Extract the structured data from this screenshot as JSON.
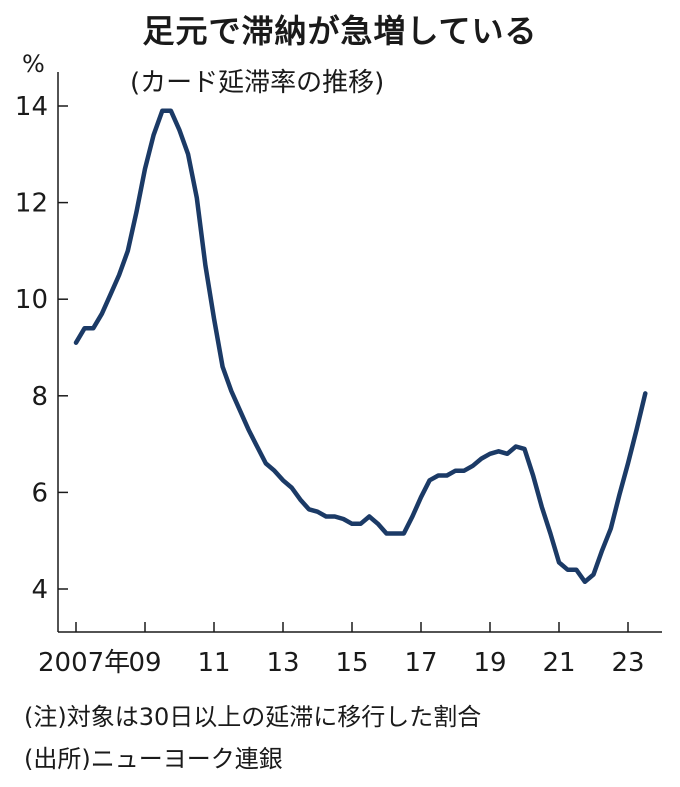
{
  "chart_data": {
    "type": "line",
    "title": "足元で滞納が急増している",
    "subtitle": "(カード延滞率の推移)",
    "ylabel": "%",
    "xlabel": "",
    "ylim": [
      3.2,
      15
    ],
    "xlim": [
      2006.8,
      2024.1
    ],
    "y_ticks": [
      4,
      6,
      8,
      10,
      12,
      14
    ],
    "x_ticks": [
      {
        "value": 2007,
        "label": "2007年"
      },
      {
        "value": 2009,
        "label": "09"
      },
      {
        "value": 2011,
        "label": "11"
      },
      {
        "value": 2013,
        "label": "13"
      },
      {
        "value": 2015,
        "label": "15"
      },
      {
        "value": 2017,
        "label": "17"
      },
      {
        "value": 2019,
        "label": "19"
      },
      {
        "value": 2021,
        "label": "21"
      },
      {
        "value": 2023,
        "label": "23"
      }
    ],
    "line_color": "#1b3a66",
    "series": [
      {
        "name": "",
        "x": [
          2007.0,
          2007.25,
          2007.5,
          2007.75,
          2008.0,
          2008.25,
          2008.5,
          2008.75,
          2009.0,
          2009.25,
          2009.5,
          2009.75,
          2010.0,
          2010.25,
          2010.5,
          2010.75,
          2011.0,
          2011.25,
          2011.5,
          2011.75,
          2012.0,
          2012.25,
          2012.5,
          2012.75,
          2013.0,
          2013.25,
          2013.5,
          2013.75,
          2014.0,
          2014.25,
          2014.5,
          2014.75,
          2015.0,
          2015.25,
          2015.5,
          2015.75,
          2016.0,
          2016.25,
          2016.5,
          2016.75,
          2017.0,
          2017.25,
          2017.5,
          2017.75,
          2018.0,
          2018.25,
          2018.5,
          2018.75,
          2019.0,
          2019.25,
          2019.5,
          2019.75,
          2020.0,
          2020.25,
          2020.5,
          2020.75,
          2021.0,
          2021.25,
          2021.5,
          2021.75,
          2022.0,
          2022.25,
          2022.5,
          2022.75,
          2023.0,
          2023.25,
          2023.5
        ],
        "values": [
          9.1,
          9.4,
          9.4,
          9.7,
          10.1,
          10.5,
          11.0,
          11.8,
          12.7,
          13.4,
          13.9,
          13.9,
          13.5,
          13.0,
          12.1,
          10.7,
          9.6,
          8.6,
          8.1,
          7.7,
          7.3,
          6.95,
          6.6,
          6.45,
          6.25,
          6.1,
          5.85,
          5.65,
          5.6,
          5.5,
          5.5,
          5.45,
          5.35,
          5.35,
          5.5,
          5.35,
          5.15,
          5.15,
          5.15,
          5.5,
          5.9,
          6.25,
          6.35,
          6.35,
          6.45,
          6.45,
          6.55,
          6.7,
          6.8,
          6.85,
          6.8,
          6.95,
          6.9,
          6.35,
          5.7,
          5.15,
          4.55,
          4.4,
          4.4,
          4.15,
          4.3,
          4.8,
          5.25,
          5.95,
          6.6,
          7.3,
          8.05
        ]
      }
    ],
    "grid": false,
    "legend": "none"
  },
  "notes": [
    "(注)対象は30日以上の延滞に移行した割合",
    "(出所)ニューヨーク連銀"
  ]
}
